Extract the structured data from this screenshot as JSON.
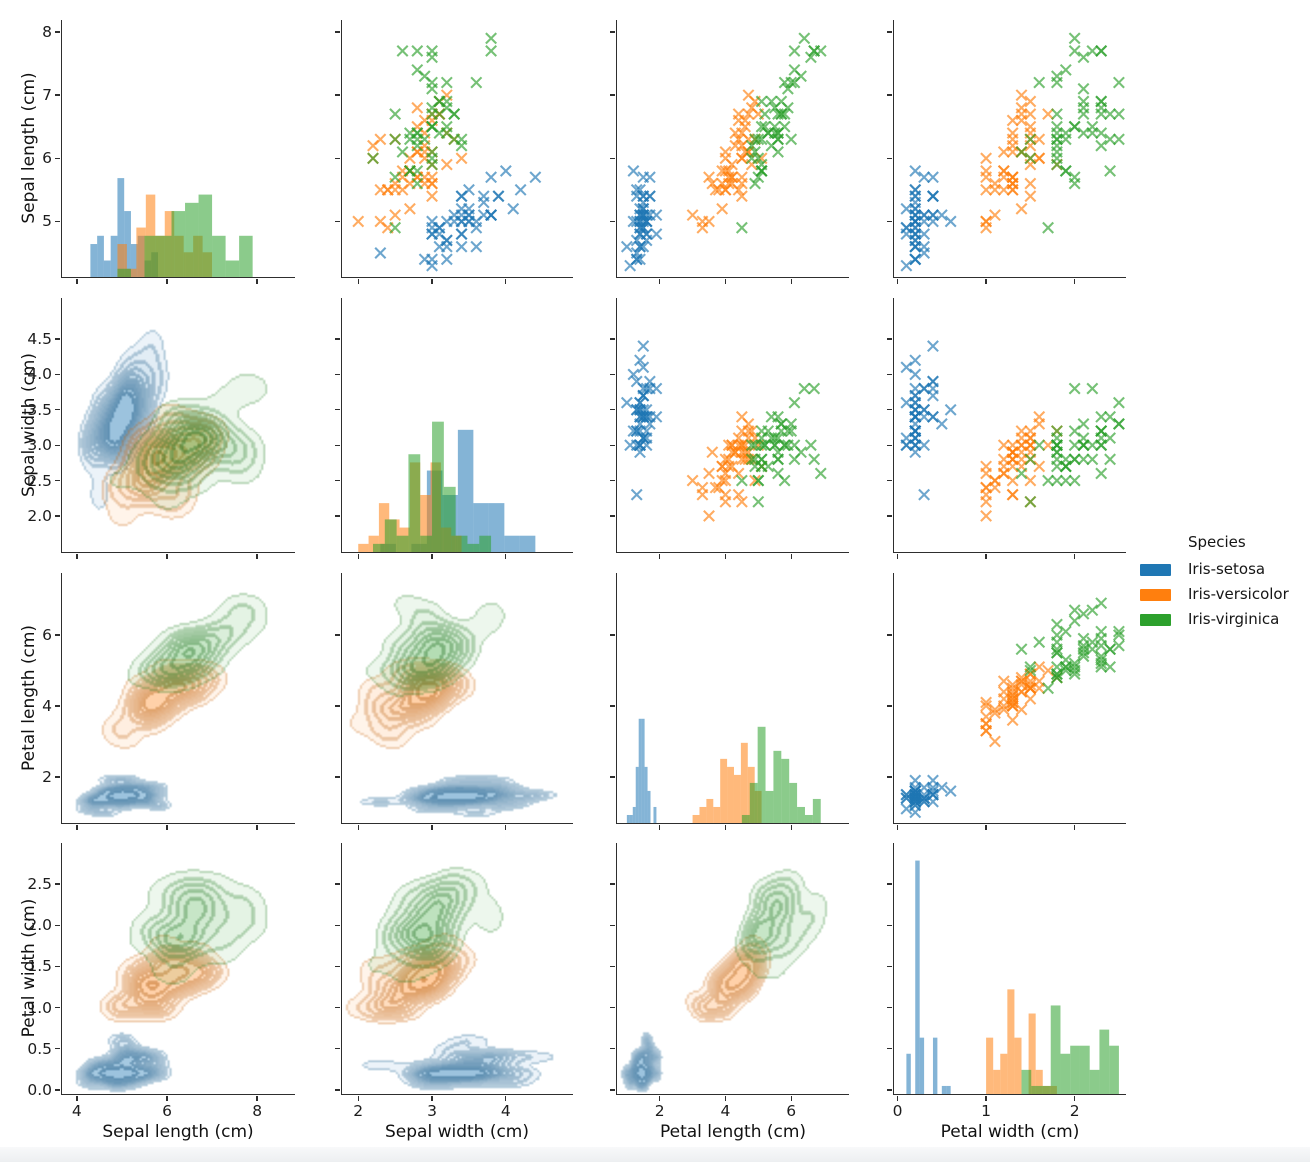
{
  "figure": {
    "legend": {
      "title": "Species",
      "entries": [
        {
          "label": "Iris-setosa",
          "color": "#1f77b4"
        },
        {
          "label": "Iris-versicolor",
          "color": "#ff7f0e"
        },
        {
          "label": "Iris-virginica",
          "color": "#2ca02c"
        }
      ]
    },
    "variables": [
      {
        "key": "sepal_length",
        "label": "Sepal length (cm)"
      },
      {
        "key": "sepal_width",
        "label": "Sepal width (cm)"
      },
      {
        "key": "petal_length",
        "label": "Petal length (cm)"
      },
      {
        "key": "petal_width",
        "label": "Petal width (cm)"
      }
    ]
  },
  "chart_data": {
    "type": "pairplot",
    "layout": {
      "diag": "histogram",
      "upper": "scatter-x-markers",
      "lower": "filled-kde-contours",
      "grid": "4x4",
      "legend_position": "right"
    },
    "marker": "x",
    "hist_bins_per_species": 10,
    "x_axes": [
      {
        "lim": [
          3.67,
          8.84
        ],
        "ticks": [
          4,
          6,
          8
        ],
        "labels": [
          "4",
          "6",
          "8"
        ]
      },
      {
        "lim": [
          1.78,
          4.91
        ],
        "ticks": [
          2,
          3,
          4
        ],
        "labels": [
          "2",
          "3",
          "4"
        ]
      },
      {
        "lim": [
          0.7,
          7.76
        ],
        "ticks": [
          2,
          4,
          6
        ],
        "labels": [
          "2",
          "4",
          "6"
        ]
      },
      {
        "lim": [
          -0.04,
          2.58
        ],
        "ticks": [
          0,
          1,
          2
        ],
        "labels": [
          "0",
          "1",
          "2"
        ]
      }
    ],
    "y_axes": [
      {
        "lim": [
          4.12,
          8.19
        ],
        "ticks": [
          5,
          6,
          7,
          8
        ],
        "labels": [
          "5",
          "6",
          "7",
          "8"
        ]
      },
      {
        "lim": [
          1.49,
          5.08
        ],
        "ticks": [
          2.0,
          2.5,
          3.0,
          3.5,
          4.0,
          4.5
        ],
        "labels": [
          "2.0",
          "2.5",
          "3.0",
          "3.5",
          "4.0",
          "4.5"
        ]
      },
      {
        "lim": [
          0.7,
          7.75
        ],
        "ticks": [
          2,
          4,
          6
        ],
        "labels": [
          "2",
          "4",
          "6"
        ]
      },
      {
        "lim": [
          -0.05,
          3.0
        ],
        "ticks": [
          0.0,
          0.5,
          1.0,
          1.5,
          2.0,
          2.5
        ],
        "labels": [
          "0.0",
          "0.5",
          "1.0",
          "1.5",
          "2.0",
          "2.5"
        ]
      }
    ],
    "series": [
      {
        "name": "Iris-setosa",
        "color": "#1f77b4",
        "sepal_length": [
          5.1,
          4.9,
          4.7,
          4.6,
          5.0,
          5.4,
          4.6,
          5.0,
          4.4,
          4.9,
          5.4,
          4.8,
          4.8,
          4.3,
          5.8,
          5.7,
          5.4,
          5.1,
          5.7,
          5.1,
          5.4,
          5.1,
          4.6,
          5.1,
          4.8,
          5.0,
          5.0,
          5.2,
          5.2,
          4.7,
          4.8,
          5.4,
          5.2,
          5.5,
          4.9,
          5.0,
          5.5,
          4.9,
          4.4,
          5.1,
          5.0,
          4.5,
          4.4,
          5.0,
          5.1,
          4.8,
          5.1,
          4.6,
          5.3,
          5.0
        ],
        "sepal_width": [
          3.5,
          3.0,
          3.2,
          3.1,
          3.6,
          3.9,
          3.4,
          3.4,
          2.9,
          3.1,
          3.7,
          3.4,
          3.0,
          3.0,
          4.0,
          4.4,
          3.9,
          3.5,
          3.8,
          3.8,
          3.4,
          3.7,
          3.6,
          3.3,
          3.4,
          3.0,
          3.4,
          3.5,
          3.4,
          3.2,
          3.1,
          3.4,
          4.1,
          4.2,
          3.1,
          3.2,
          3.5,
          3.6,
          3.0,
          3.4,
          3.5,
          2.3,
          3.2,
          3.5,
          3.8,
          3.0,
          3.8,
          3.2,
          3.7,
          3.3
        ],
        "petal_length": [
          1.4,
          1.4,
          1.3,
          1.5,
          1.4,
          1.7,
          1.4,
          1.5,
          1.4,
          1.5,
          1.5,
          1.6,
          1.4,
          1.1,
          1.2,
          1.5,
          1.3,
          1.4,
          1.7,
          1.5,
          1.7,
          1.5,
          1.0,
          1.7,
          1.9,
          1.6,
          1.6,
          1.5,
          1.4,
          1.6,
          1.6,
          1.5,
          1.5,
          1.4,
          1.5,
          1.2,
          1.3,
          1.4,
          1.3,
          1.5,
          1.3,
          1.3,
          1.3,
          1.6,
          1.9,
          1.4,
          1.6,
          1.4,
          1.5,
          1.4
        ],
        "petal_width": [
          0.2,
          0.2,
          0.2,
          0.2,
          0.2,
          0.4,
          0.3,
          0.2,
          0.2,
          0.1,
          0.2,
          0.2,
          0.1,
          0.1,
          0.2,
          0.4,
          0.4,
          0.3,
          0.3,
          0.3,
          0.2,
          0.4,
          0.2,
          0.5,
          0.2,
          0.2,
          0.4,
          0.2,
          0.2,
          0.2,
          0.2,
          0.4,
          0.1,
          0.2,
          0.2,
          0.2,
          0.2,
          0.1,
          0.2,
          0.2,
          0.3,
          0.3,
          0.2,
          0.6,
          0.4,
          0.3,
          0.2,
          0.2,
          0.2,
          0.2
        ]
      },
      {
        "name": "Iris-versicolor",
        "color": "#ff7f0e",
        "sepal_length": [
          7.0,
          6.4,
          6.9,
          5.5,
          6.5,
          5.7,
          6.3,
          4.9,
          6.6,
          5.2,
          5.0,
          5.9,
          6.0,
          6.1,
          5.6,
          6.7,
          5.6,
          5.8,
          6.2,
          5.6,
          5.9,
          6.1,
          6.3,
          6.1,
          6.4,
          6.6,
          6.8,
          6.7,
          6.0,
          5.7,
          5.5,
          5.5,
          5.8,
          6.0,
          5.4,
          6.0,
          6.7,
          6.3,
          5.6,
          5.5,
          5.5,
          6.1,
          5.8,
          5.0,
          5.6,
          5.7,
          5.7,
          6.2,
          5.1,
          5.7
        ],
        "sepal_width": [
          3.2,
          3.2,
          3.1,
          2.3,
          2.8,
          2.8,
          3.3,
          2.4,
          2.9,
          2.7,
          2.0,
          3.0,
          2.2,
          2.9,
          2.9,
          3.1,
          3.0,
          2.7,
          2.2,
          2.5,
          3.2,
          2.8,
          2.5,
          2.8,
          2.9,
          3.0,
          2.8,
          3.0,
          2.9,
          2.6,
          2.4,
          2.4,
          2.7,
          2.7,
          3.0,
          3.4,
          3.1,
          2.3,
          3.0,
          2.5,
          2.6,
          3.0,
          2.6,
          2.3,
          2.7,
          3.0,
          2.9,
          2.9,
          2.5,
          2.8
        ],
        "petal_length": [
          4.7,
          4.5,
          4.9,
          4.0,
          4.6,
          4.5,
          4.7,
          3.3,
          4.6,
          3.9,
          3.5,
          4.2,
          4.0,
          4.7,
          3.6,
          4.4,
          4.5,
          4.1,
          4.5,
          3.9,
          4.8,
          4.0,
          4.9,
          4.7,
          4.3,
          4.4,
          4.8,
          5.0,
          4.5,
          3.5,
          3.8,
          3.7,
          3.9,
          5.1,
          4.5,
          4.5,
          4.7,
          4.4,
          4.1,
          4.0,
          4.4,
          4.6,
          4.0,
          3.3,
          4.2,
          4.2,
          4.2,
          4.3,
          3.0,
          4.1
        ],
        "petal_width": [
          1.4,
          1.5,
          1.5,
          1.3,
          1.5,
          1.3,
          1.6,
          1.0,
          1.3,
          1.4,
          1.0,
          1.5,
          1.0,
          1.4,
          1.3,
          1.4,
          1.5,
          1.0,
          1.5,
          1.1,
          1.8,
          1.3,
          1.5,
          1.2,
          1.3,
          1.4,
          1.4,
          1.7,
          1.5,
          1.0,
          1.1,
          1.0,
          1.2,
          1.6,
          1.5,
          1.6,
          1.5,
          1.3,
          1.3,
          1.3,
          1.2,
          1.4,
          1.2,
          1.0,
          1.3,
          1.2,
          1.3,
          1.3,
          1.1,
          1.3
        ]
      },
      {
        "name": "Iris-virginica",
        "color": "#2ca02c",
        "sepal_length": [
          6.3,
          5.8,
          7.1,
          6.3,
          6.5,
          7.6,
          4.9,
          7.3,
          6.7,
          7.2,
          6.5,
          6.4,
          6.8,
          5.7,
          5.8,
          6.4,
          6.5,
          7.7,
          7.7,
          6.0,
          6.9,
          5.6,
          7.7,
          6.3,
          6.7,
          7.2,
          6.2,
          6.1,
          6.4,
          7.2,
          7.4,
          7.9,
          6.4,
          6.3,
          6.1,
          7.7,
          6.3,
          6.4,
          6.0,
          6.9,
          6.7,
          6.9,
          5.8,
          6.8,
          6.7,
          6.7,
          6.3,
          6.5,
          6.2,
          5.9
        ],
        "sepal_width": [
          3.3,
          2.7,
          3.0,
          2.9,
          3.0,
          3.0,
          2.5,
          2.9,
          2.5,
          3.6,
          3.2,
          2.7,
          3.0,
          2.5,
          2.8,
          3.2,
          3.0,
          3.8,
          2.6,
          2.2,
          3.2,
          2.8,
          2.8,
          2.7,
          3.3,
          3.2,
          2.8,
          3.0,
          2.8,
          3.0,
          2.8,
          3.8,
          2.8,
          2.8,
          2.6,
          3.0,
          3.4,
          3.1,
          3.0,
          3.1,
          3.1,
          3.1,
          2.7,
          3.2,
          3.3,
          3.0,
          2.5,
          3.0,
          3.4,
          3.0
        ],
        "petal_length": [
          6.0,
          5.1,
          5.9,
          5.6,
          5.8,
          6.6,
          4.5,
          6.3,
          5.8,
          6.1,
          5.1,
          5.3,
          5.5,
          5.0,
          5.1,
          5.3,
          5.5,
          6.7,
          6.9,
          5.0,
          5.7,
          4.9,
          6.7,
          4.9,
          5.7,
          6.0,
          4.8,
          4.9,
          5.6,
          5.8,
          6.1,
          6.4,
          5.6,
          5.1,
          5.6,
          6.1,
          5.6,
          5.5,
          4.8,
          5.4,
          5.6,
          5.1,
          5.1,
          5.9,
          5.7,
          5.2,
          5.0,
          5.2,
          5.4,
          5.1
        ],
        "petal_width": [
          2.5,
          1.9,
          2.1,
          1.8,
          2.2,
          2.1,
          1.7,
          1.8,
          1.8,
          2.5,
          2.0,
          1.9,
          2.1,
          2.0,
          2.4,
          2.3,
          1.8,
          2.2,
          2.3,
          1.5,
          2.3,
          2.0,
          2.0,
          1.8,
          2.1,
          1.8,
          1.8,
          1.8,
          2.1,
          1.6,
          1.9,
          2.0,
          2.2,
          1.5,
          1.4,
          2.3,
          2.4,
          1.8,
          1.8,
          2.1,
          2.4,
          2.3,
          1.9,
          2.3,
          2.5,
          2.3,
          1.9,
          2.0,
          2.3,
          1.8
        ]
      }
    ]
  }
}
